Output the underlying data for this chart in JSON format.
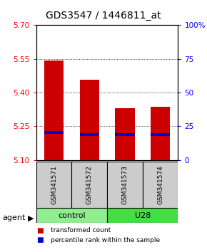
{
  "title": "GDS3547 / 1446811_at",
  "samples": [
    "GSM341571",
    "GSM341572",
    "GSM341573",
    "GSM341574"
  ],
  "bar_values": [
    5.543,
    5.458,
    5.332,
    5.338
  ],
  "bar_bottom": 5.1,
  "percentile_values": [
    20.5,
    19.0,
    19.0,
    19.0
  ],
  "ylim": [
    5.1,
    5.7
  ],
  "yticks_left": [
    5.1,
    5.25,
    5.4,
    5.55,
    5.7
  ],
  "yticks_right": [
    0,
    25,
    50,
    75,
    100
  ],
  "ytick_labels_right": [
    "0",
    "25",
    "50",
    "75",
    "100%"
  ],
  "groups": [
    {
      "label": "control",
      "indices": [
        0,
        1
      ],
      "color": "#90ee90"
    },
    {
      "label": "U28",
      "indices": [
        2,
        3
      ],
      "color": "#44dd44"
    }
  ],
  "bar_color": "#cc0000",
  "percentile_color": "#0000cc",
  "bar_width": 0.55,
  "legend_items": [
    {
      "label": "transformed count",
      "color": "#cc0000"
    },
    {
      "label": "percentile rank within the sample",
      "color": "#0000cc"
    }
  ],
  "title_fontsize": 10,
  "tick_fontsize": 7.5,
  "sample_fontsize": 6.5,
  "group_fontsize": 8,
  "legend_fontsize": 6.5,
  "agent_fontsize": 8
}
